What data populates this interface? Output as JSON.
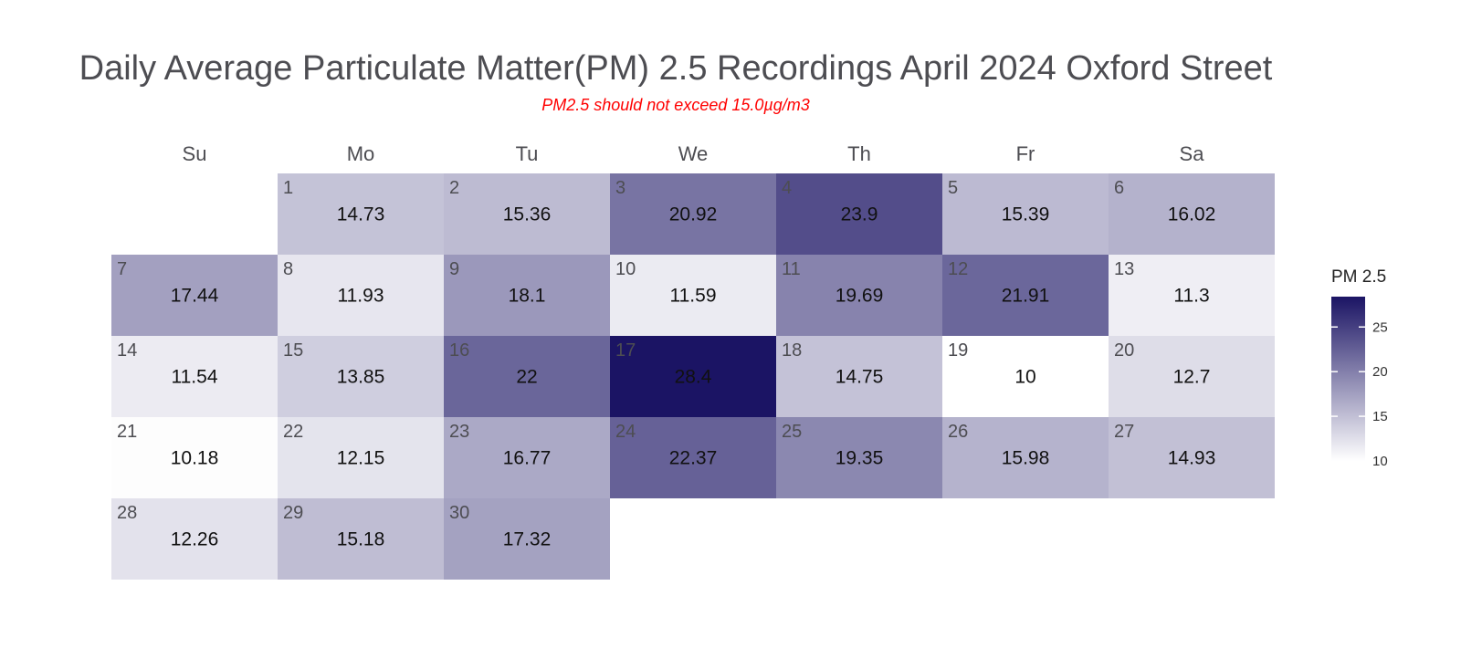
{
  "chart_data": {
    "type": "heatmap",
    "title": "Daily Average Particulate Matter(PM) 2.5 Recordings April 2024 Oxford Street",
    "subtitle": "PM2.5 should not exceed 15.0µg/m3",
    "weekdays": [
      "Su",
      "Mo",
      "Tu",
      "We",
      "Th",
      "Fr",
      "Sa"
    ],
    "first_weekday_index": 1,
    "days": [
      {
        "day": "1",
        "value": 14.73,
        "label": "14.73"
      },
      {
        "day": "2",
        "value": 15.36,
        "label": "15.36"
      },
      {
        "day": "3",
        "value": 20.92,
        "label": "20.92"
      },
      {
        "day": "4",
        "value": 23.9,
        "label": "23.9"
      },
      {
        "day": "5",
        "value": 15.39,
        "label": "15.39"
      },
      {
        "day": "6",
        "value": 16.02,
        "label": "16.02"
      },
      {
        "day": "7",
        "value": 17.44,
        "label": "17.44"
      },
      {
        "day": "8",
        "value": 11.93,
        "label": "11.93"
      },
      {
        "day": "9",
        "value": 18.1,
        "label": "18.1"
      },
      {
        "day": "10",
        "value": 11.59,
        "label": "11.59"
      },
      {
        "day": "11",
        "value": 19.69,
        "label": "19.69"
      },
      {
        "day": "12",
        "value": 21.91,
        "label": "21.91"
      },
      {
        "day": "13",
        "value": 11.3,
        "label": "11.3"
      },
      {
        "day": "14",
        "value": 11.54,
        "label": "11.54"
      },
      {
        "day": "15",
        "value": 13.85,
        "label": "13.85"
      },
      {
        "day": "16",
        "value": 22,
        "label": "22"
      },
      {
        "day": "17",
        "value": 28.4,
        "label": "28.4"
      },
      {
        "day": "18",
        "value": 14.75,
        "label": "14.75"
      },
      {
        "day": "19",
        "value": 10,
        "label": "10"
      },
      {
        "day": "20",
        "value": 12.7,
        "label": "12.7"
      },
      {
        "day": "21",
        "value": 10.18,
        "label": "10.18"
      },
      {
        "day": "22",
        "value": 12.15,
        "label": "12.15"
      },
      {
        "day": "23",
        "value": 16.77,
        "label": "16.77"
      },
      {
        "day": "24",
        "value": 22.37,
        "label": "22.37"
      },
      {
        "day": "25",
        "value": 19.35,
        "label": "19.35"
      },
      {
        "day": "26",
        "value": 15.98,
        "label": "15.98"
      },
      {
        "day": "27",
        "value": 14.93,
        "label": "14.93"
      },
      {
        "day": "28",
        "value": 12.26,
        "label": "12.26"
      },
      {
        "day": "29",
        "value": 15.18,
        "label": "15.18"
      },
      {
        "day": "30",
        "value": 17.32,
        "label": "17.32"
      }
    ],
    "legend": {
      "title": "PM 2.5",
      "ticks": [
        {
          "value": 10,
          "label": "10"
        },
        {
          "value": 15,
          "label": "15"
        },
        {
          "value": 20,
          "label": "20"
        },
        {
          "value": 25,
          "label": "25"
        }
      ],
      "range": [
        10,
        28.4
      ],
      "placement": "right"
    },
    "colors": {
      "low": "#ffffff",
      "high": "#1b1464",
      "title": "#4d4d52",
      "subtitle": "#ff0000"
    }
  }
}
